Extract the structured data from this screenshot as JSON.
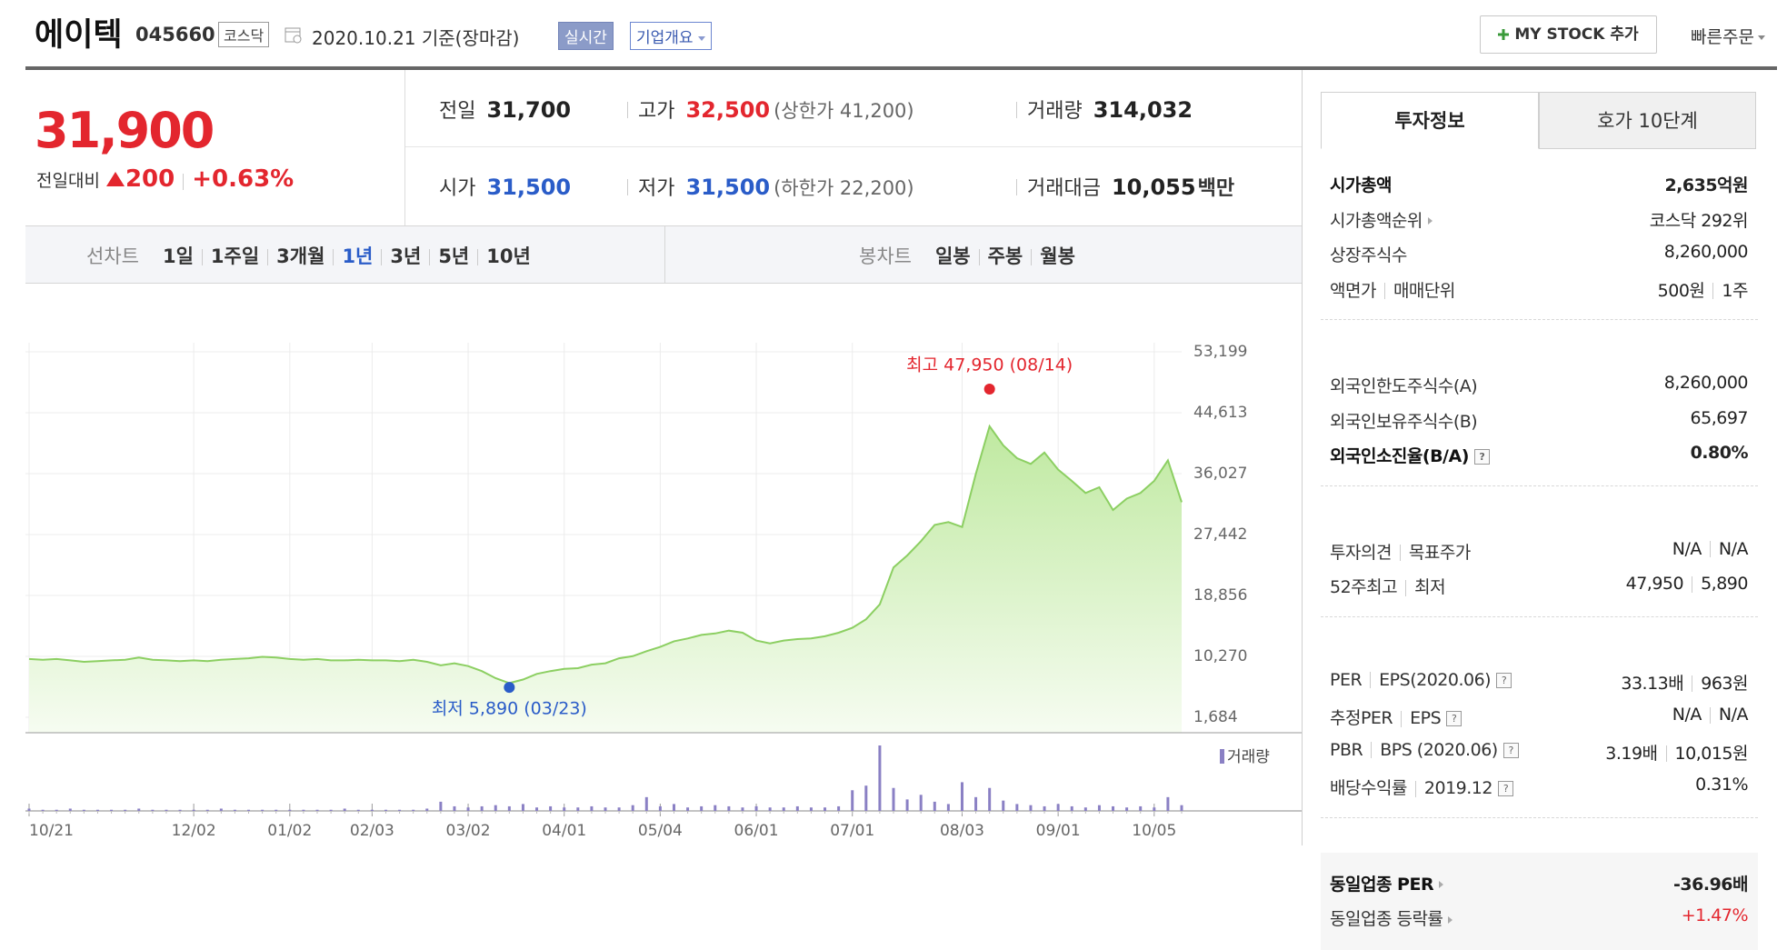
{
  "header": {
    "name": "에이텍",
    "code": "045660",
    "market": "코스닥",
    "date": "2020.10.21",
    "basis": "기준(장마감)",
    "realtime": "실시간",
    "overview": "기업개요",
    "mystock": "MY STOCK 추가",
    "quick_order": "빠른주문"
  },
  "quote": {
    "price": "31,900",
    "change_label": "전일대비",
    "change": "200",
    "change_pct": "+0.63%"
  },
  "stats": [
    [
      {
        "label": "전일",
        "value": "31,700"
      },
      {
        "label": "고가",
        "value": "32,500",
        "color": "red",
        "note": "(상한가 41,200)"
      },
      {
        "label": "거래량",
        "value": "314,032"
      }
    ],
    [
      {
        "label": "시가",
        "value": "31,500",
        "color": "blue"
      },
      {
        "label": "저가",
        "value": "31,500",
        "color": "blue",
        "note": "(하한가 22,200)"
      },
      {
        "label": "거래대금",
        "value": "10,055",
        "unit": "백만"
      }
    ]
  ],
  "chart_tabs": {
    "line_label": "선차트",
    "line_periods": [
      "1일",
      "1주일",
      "3개월",
      "1년",
      "3년",
      "5년",
      "10년"
    ],
    "active_period": 3,
    "candle_label": "봉차트",
    "candle_periods": [
      "일봉",
      "주봉",
      "월봉"
    ]
  },
  "chart_data": {
    "type": "line",
    "categories": [
      "10/21",
      null,
      null,
      null,
      null,
      null,
      null,
      null,
      null,
      null,
      null,
      null,
      "12/02",
      null,
      null,
      null,
      null,
      null,
      null,
      "01/02",
      null,
      null,
      null,
      null,
      null,
      "02/03",
      null,
      null,
      null,
      null,
      null,
      null,
      "03/02",
      null,
      null,
      null,
      null,
      null,
      null,
      "04/01",
      null,
      null,
      null,
      null,
      null,
      null,
      "05/04",
      null,
      null,
      null,
      null,
      null,
      null,
      "06/01",
      null,
      null,
      null,
      null,
      null,
      null,
      "07/01",
      null,
      null,
      null,
      null,
      null,
      null,
      null,
      "08/03",
      null,
      null,
      null,
      null,
      null,
      null,
      "09/01",
      null,
      null,
      null,
      null,
      null,
      null,
      "10/05",
      null,
      null
    ],
    "values": [
      9900,
      9800,
      9900,
      9700,
      9500,
      9600,
      9700,
      9800,
      10100,
      9800,
      9700,
      9600,
      9700,
      9600,
      9800,
      9900,
      10000,
      10200,
      10100,
      9900,
      9800,
      9900,
      9700,
      9700,
      9800,
      9700,
      9700,
      9600,
      9800,
      9500,
      9000,
      9300,
      8900,
      8200,
      7200,
      6500,
      7000,
      7800,
      8200,
      8500,
      8600,
      9100,
      9300,
      10000,
      10300,
      11000,
      11600,
      12400,
      12800,
      13300,
      13500,
      13900,
      13600,
      12500,
      12100,
      12500,
      12700,
      12800,
      13100,
      13600,
      14300,
      15500,
      17600,
      22800,
      24500,
      26500,
      28800,
      29200,
      28500,
      36000,
      42700,
      40000,
      38200,
      37400,
      39000,
      36600,
      35000,
      33300,
      34100,
      30900,
      32500,
      33300,
      35000,
      37900,
      32000
    ],
    "color": "#8ccf62",
    "volume": {
      "name": "거래량",
      "color": "#8a80c4",
      "values": [
        2,
        1,
        1,
        2,
        1,
        1,
        1,
        1,
        2,
        1,
        1,
        1,
        1,
        1,
        2,
        1,
        1,
        1,
        1,
        1,
        1,
        1,
        1,
        2,
        1,
        1,
        1,
        1,
        1,
        2,
        8,
        4,
        3,
        4,
        5,
        4,
        6,
        3,
        4,
        3,
        3,
        4,
        3,
        3,
        5,
        12,
        4,
        6,
        3,
        4,
        5,
        4,
        3,
        4,
        3,
        3,
        4,
        3,
        3,
        4,
        18,
        22,
        57,
        20,
        10,
        14,
        8,
        6,
        25,
        12,
        20,
        9,
        6,
        5,
        4,
        6,
        4,
        3,
        5,
        4,
        3,
        4,
        3,
        12,
        5
      ]
    },
    "ylim": [
      1684,
      53199
    ],
    "yticks": [
      {
        "value": 1684,
        "label": "1,684"
      },
      {
        "value": 10270,
        "label": "10,270"
      },
      {
        "value": 18856,
        "label": "18,856"
      },
      {
        "value": 27442,
        "label": "27,442"
      },
      {
        "value": 36027,
        "label": "36,027"
      },
      {
        "value": 44613,
        "label": "44,613"
      },
      {
        "value": 53199,
        "label": "53,199"
      }
    ],
    "grid": true,
    "high": {
      "label": "최고 47,950 (08/14)",
      "value": 47950
    },
    "low": {
      "label": "최저 5,890 (03/23)",
      "value": 5890
    }
  },
  "side_tabs": [
    "투자정보",
    "호가 10단계"
  ],
  "help_icon": "?",
  "info_groups": [
    [
      {
        "label": [
          "시가총액"
        ],
        "value": [
          "2,635억원"
        ],
        "strong": true
      },
      {
        "label": [
          "시가총액순위"
        ],
        "arrow": true,
        "value": [
          "코스닥 292위"
        ]
      },
      {
        "label": [
          "상장주식수"
        ],
        "value": [
          "8,260,000"
        ]
      },
      {
        "label": [
          "액면가",
          "매매단위"
        ],
        "value": [
          "500원",
          "1주"
        ]
      }
    ],
    [
      {
        "label": [
          "외국인한도주식수(A)"
        ],
        "value": [
          "8,260,000"
        ]
      },
      {
        "label": [
          "외국인보유주식수(B)"
        ],
        "value": [
          "65,697"
        ]
      },
      {
        "label": [
          "외국인소진율(B/A)"
        ],
        "help": true,
        "value": [
          "0.80%"
        ],
        "strong": true
      }
    ],
    [
      {
        "label": [
          "투자의견",
          "목표주가"
        ],
        "value": [
          "N/A",
          "N/A"
        ]
      },
      {
        "label": [
          "52주최고",
          "최저"
        ],
        "value": [
          "47,950",
          "5,890"
        ]
      }
    ],
    [
      {
        "label": [
          "PER",
          "EPS(2020.06)"
        ],
        "help": true,
        "value": [
          "33.13배",
          "963원"
        ]
      },
      {
        "label": [
          "추정PER",
          "EPS"
        ],
        "help": true,
        "value": [
          "N/A",
          "N/A"
        ]
      },
      {
        "label": [
          "PBR",
          "BPS (2020.06)"
        ],
        "help": true,
        "value": [
          "3.19배",
          "10,015원"
        ]
      },
      {
        "label": [
          "배당수익률",
          "2019.12"
        ],
        "help": true,
        "value": [
          "0.31%"
        ]
      }
    ],
    [
      {
        "label": [
          "동일업종 PER"
        ],
        "arrow": true,
        "strong": true,
        "value": [
          "-36.96배"
        ]
      },
      {
        "label": [
          "동일업종 등락률"
        ],
        "arrow": true,
        "value": [
          "+1.47%"
        ],
        "color": "red"
      }
    ]
  ]
}
